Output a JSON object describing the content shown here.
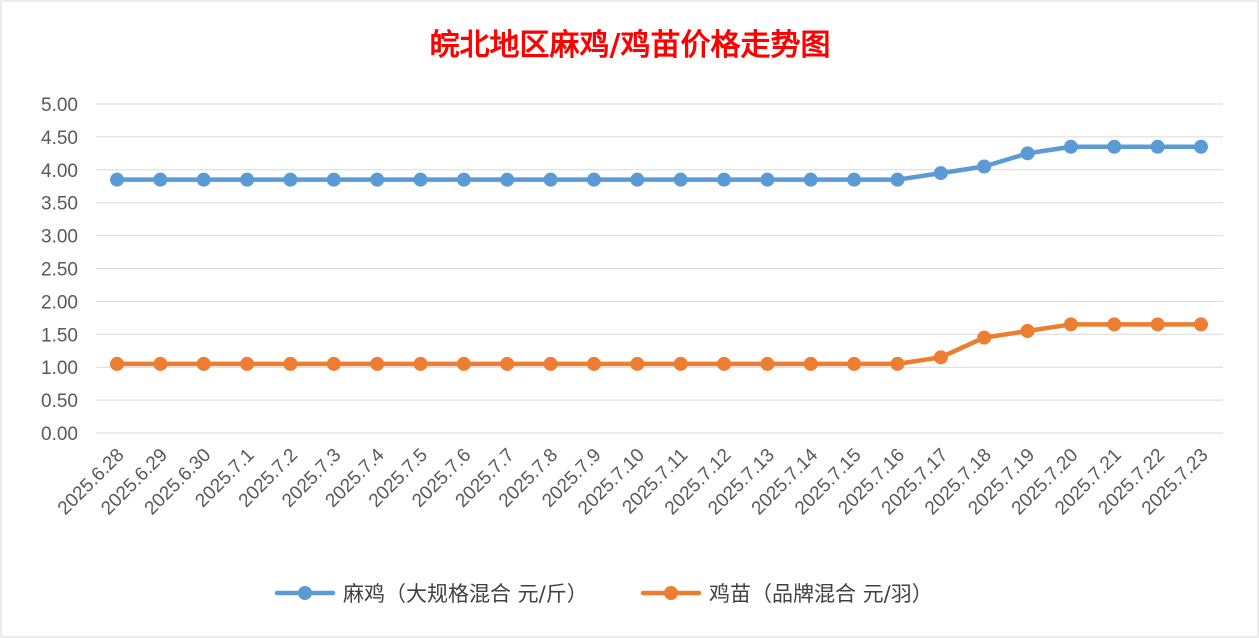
{
  "chart_data": {
    "type": "line",
    "title": "皖北地区麻鸡/鸡苗价格走势图",
    "title_color": "#ff0000",
    "xlabel": "",
    "ylabel": "",
    "ylim": [
      0,
      5
    ],
    "y_ticks": [
      "0.00",
      "0.50",
      "1.00",
      "1.50",
      "2.00",
      "2.50",
      "3.00",
      "3.50",
      "4.00",
      "4.50",
      "5.00"
    ],
    "grid": true,
    "legend_position": "bottom",
    "categories": [
      "2025.6.28",
      "2025.6.29",
      "2025.6.30",
      "2025.7.1",
      "2025.7.2",
      "2025.7.3",
      "2025.7.4",
      "2025.7.5",
      "2025.7.6",
      "2025.7.7",
      "2025.7.8",
      "2025.7.9",
      "2025.7.10",
      "2025.7.11",
      "2025.7.12",
      "2025.7.13",
      "2025.7.14",
      "2025.7.15",
      "2025.7.16",
      "2025.7.17",
      "2025.7.18",
      "2025.7.19",
      "2025.7.20",
      "2025.7.21",
      "2025.7.22",
      "2025.7.23"
    ],
    "series": [
      {
        "name": "麻鸡（大规格混合 元/斤）",
        "color": "#5b9bd5",
        "values": [
          3.85,
          3.85,
          3.85,
          3.85,
          3.85,
          3.85,
          3.85,
          3.85,
          3.85,
          3.85,
          3.85,
          3.85,
          3.85,
          3.85,
          3.85,
          3.85,
          3.85,
          3.85,
          3.85,
          3.95,
          4.05,
          4.25,
          4.35,
          4.35,
          4.35,
          4.35
        ]
      },
      {
        "name": "鸡苗（品牌混合 元/羽）",
        "color": "#ed7d31",
        "values": [
          1.05,
          1.05,
          1.05,
          1.05,
          1.05,
          1.05,
          1.05,
          1.05,
          1.05,
          1.05,
          1.05,
          1.05,
          1.05,
          1.05,
          1.05,
          1.05,
          1.05,
          1.05,
          1.05,
          1.15,
          1.45,
          1.55,
          1.65,
          1.65,
          1.65,
          1.65
        ]
      }
    ]
  }
}
